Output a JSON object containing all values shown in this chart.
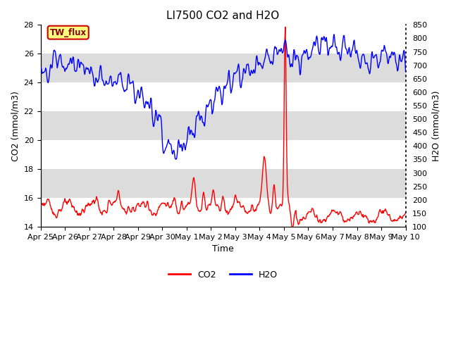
{
  "title": "LI7500 CO2 and H2O",
  "xlabel": "Time",
  "ylabel_left": "CO2 (mmol/m3)",
  "ylabel_right": "H2O (mmol/m3)",
  "ylim_left": [
    14,
    28
  ],
  "ylim_right": [
    100,
    850
  ],
  "yticks_left": [
    14,
    16,
    18,
    20,
    22,
    24,
    26,
    28
  ],
  "yticks_right": [
    100,
    150,
    200,
    250,
    300,
    350,
    400,
    450,
    500,
    550,
    600,
    650,
    700,
    750,
    800,
    850
  ],
  "xtick_labels": [
    "Apr 25",
    "Apr 26",
    "Apr 27",
    "Apr 28",
    "Apr 29",
    "Apr 30",
    "May 1",
    "May 2",
    "May 3",
    "May 4",
    "May 5",
    "May 6",
    "May 7",
    "May 8",
    "May 9",
    "May 10"
  ],
  "co2_color": "#FF0000",
  "h2o_color": "#0000FF",
  "background_color": "#FFFFFF",
  "band_colors": [
    "#FFFFFF",
    "#DCDCDC"
  ],
  "annotation_text": "TW_flux",
  "annotation_bg": "#FFFF80",
  "annotation_border": "#CC0000",
  "legend_co2": "CO2",
  "legend_h2o": "H2O",
  "title_fontsize": 11,
  "axis_label_fontsize": 9,
  "tick_fontsize": 8,
  "linewidth": 1.0
}
